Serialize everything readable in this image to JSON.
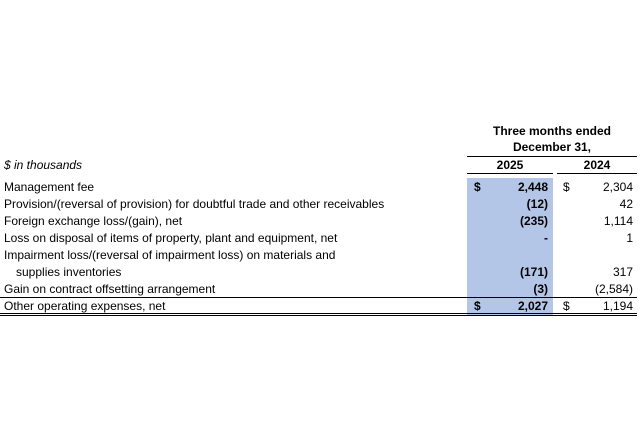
{
  "header": {
    "period": "Three months ended",
    "date": "December 31,",
    "units": "$ in thousands",
    "years": [
      "2025",
      "2024"
    ]
  },
  "table": {
    "rows": [
      {
        "label": [
          "Management fee"
        ],
        "cells": [
          {
            "currency": "$",
            "value": "2,448"
          },
          {
            "currency": "$",
            "value": "2,304"
          }
        ]
      },
      {
        "label": [
          "Provision/(reversal of provision) for doubtful trade and other receivables"
        ],
        "cells": [
          {
            "value": "(12)"
          },
          {
            "value": "42"
          }
        ]
      },
      {
        "label": [
          "Foreign exchange loss/(gain), net"
        ],
        "cells": [
          {
            "value": "(235)"
          },
          {
            "value": "1,114"
          }
        ]
      },
      {
        "label": [
          "Loss on disposal of items of property, plant and equipment, net"
        ],
        "cells": [
          {
            "value": "-"
          },
          {
            "value": "1"
          }
        ]
      },
      {
        "label": [
          "Impairment loss/(reversal of impairment loss) on materials and",
          "supplies inventories"
        ],
        "cells": [
          {
            "value": "(171)"
          },
          {
            "value": "317"
          }
        ]
      },
      {
        "label": [
          "Gain on contract offsetting arrangement"
        ],
        "cells": [
          {
            "value": "(3)"
          },
          {
            "value": "(2,584)"
          }
        ]
      },
      {
        "label": [
          "Other operating expenses, net"
        ],
        "cells": [
          {
            "currency": "$",
            "value": "2,027"
          },
          {
            "currency": "$",
            "value": "1,194"
          }
        ]
      }
    ]
  }
}
